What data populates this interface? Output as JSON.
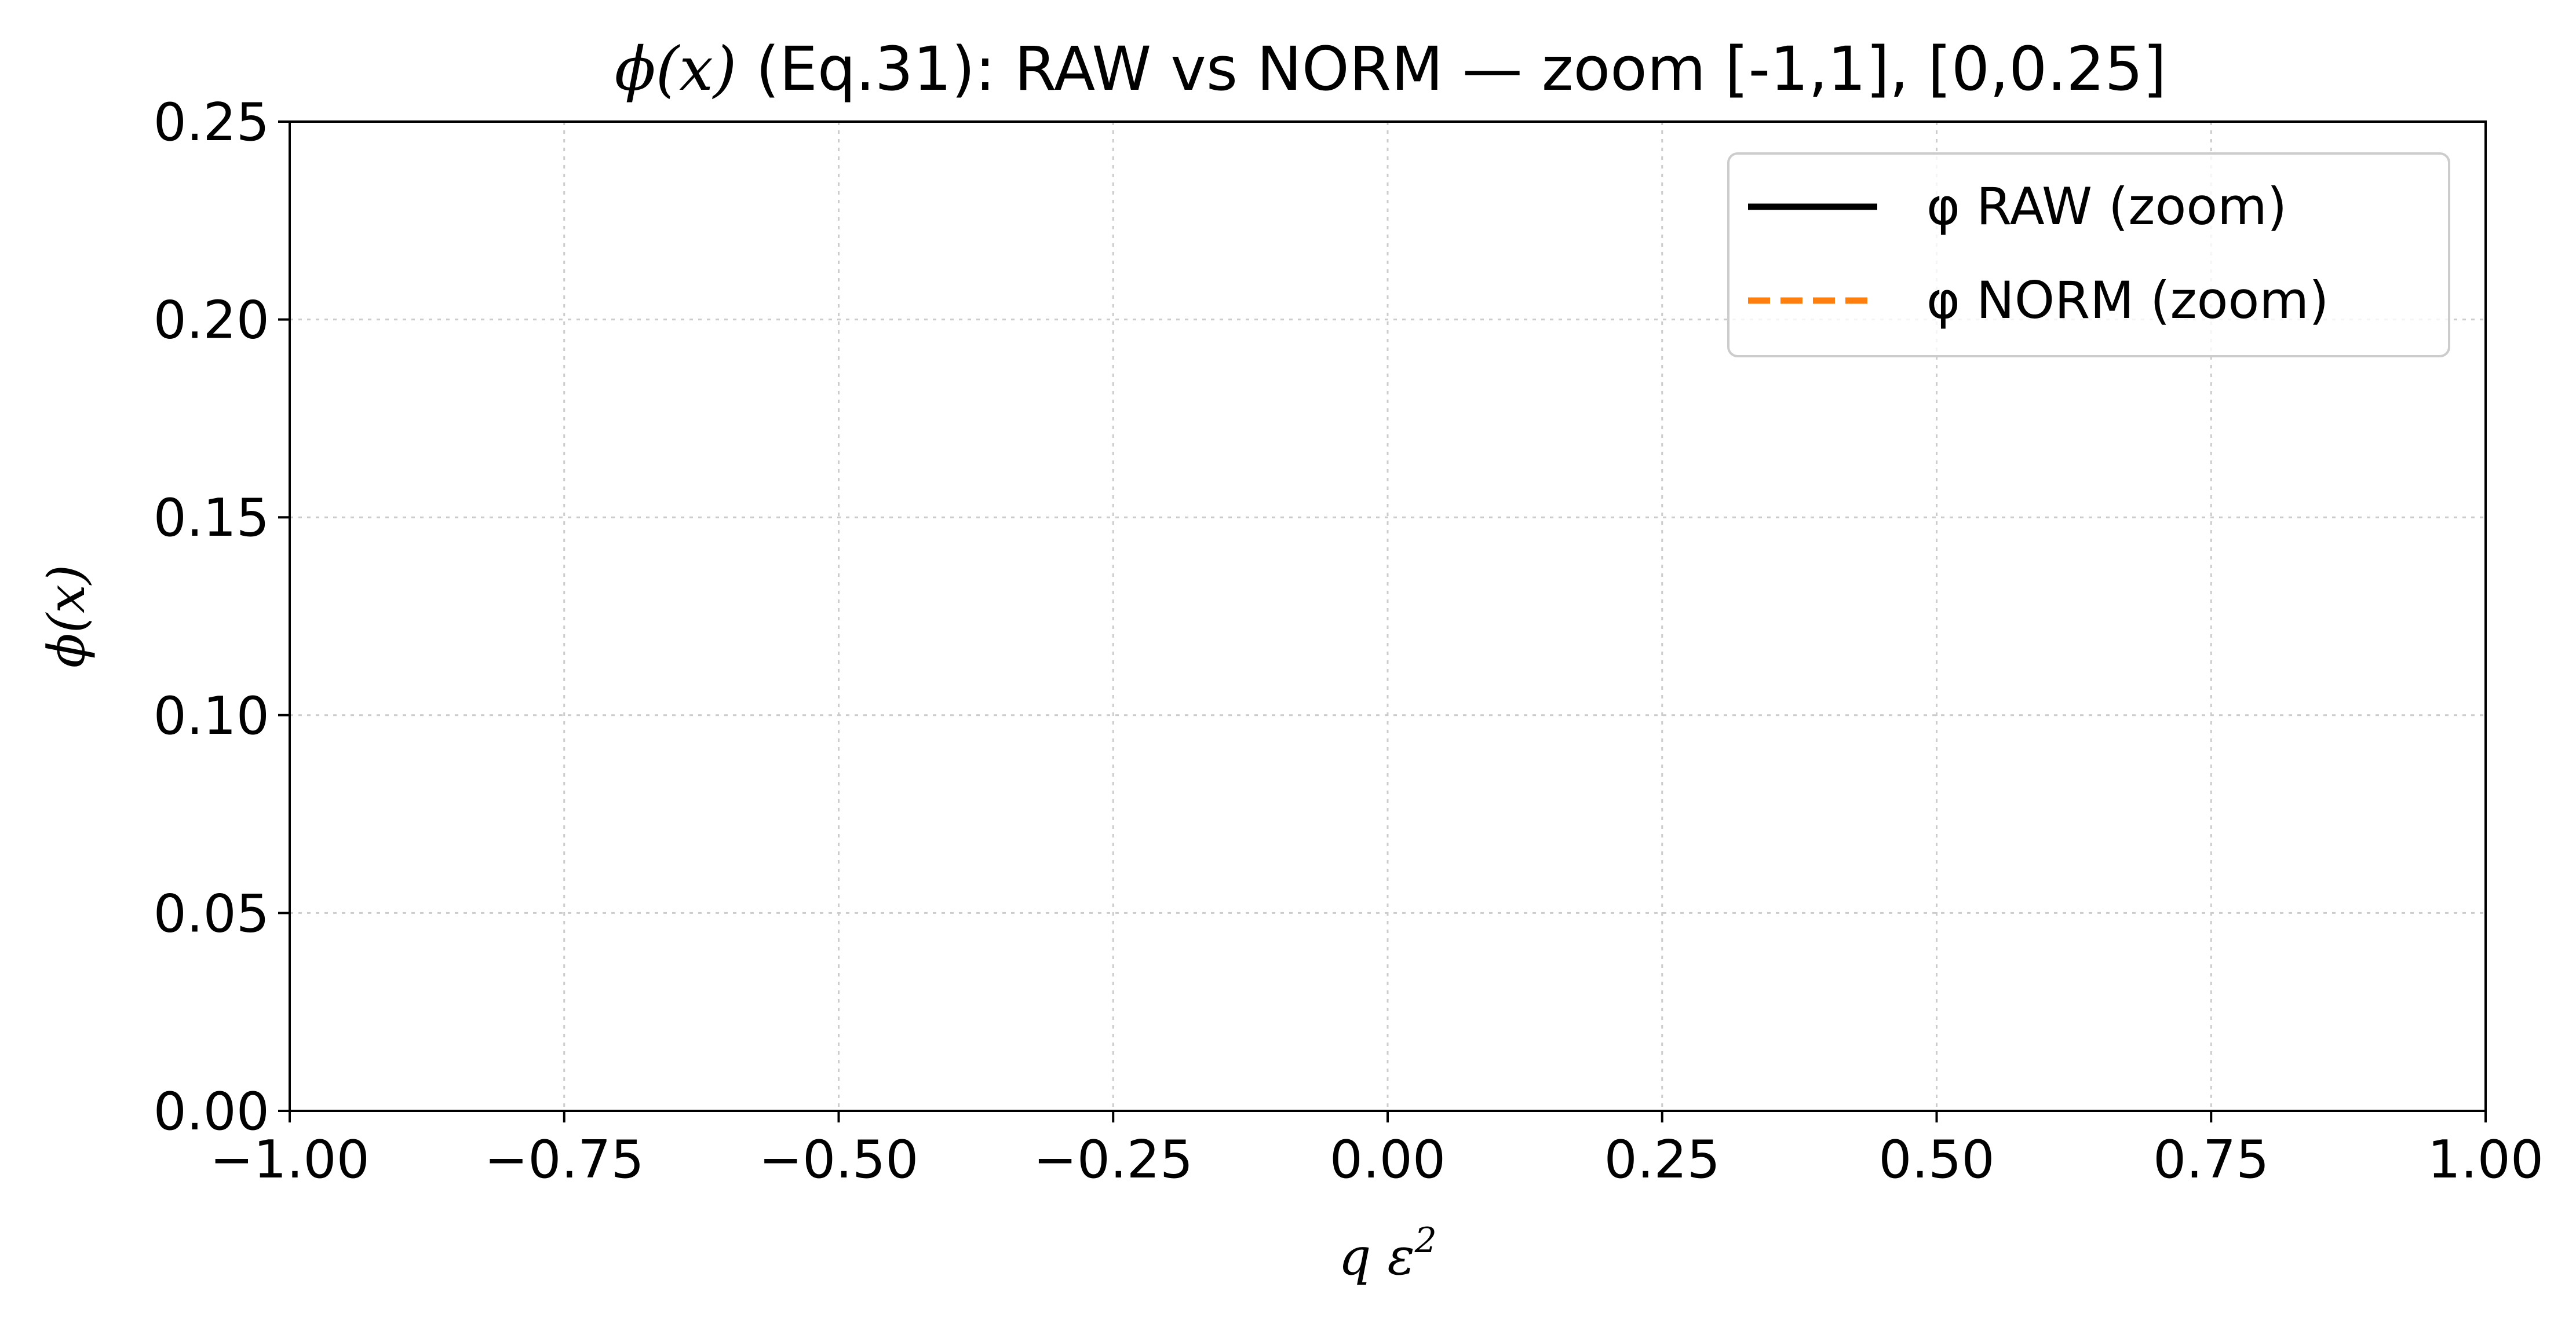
{
  "chart_data": {
    "type": "line",
    "title": {
      "symbol": "ϕ(x)",
      "text": " (Eq.31): RAW vs NORM — zoom [-1,1], [0,0.25]"
    },
    "xlabel": {
      "main": "q ε",
      "sup": "2"
    },
    "ylabel": "ϕ(x)",
    "xlim": [
      -1.0,
      1.0
    ],
    "ylim": [
      0.0,
      0.25
    ],
    "x_ticks": [
      -1.0,
      -0.75,
      -0.5,
      -0.25,
      0.0,
      0.25,
      0.5,
      0.75,
      1.0
    ],
    "x_tick_labels": [
      "−1.00",
      "−0.75",
      "−0.50",
      "−0.25",
      "0.00",
      "0.25",
      "0.50",
      "0.75",
      "1.00"
    ],
    "y_ticks": [
      0.0,
      0.05,
      0.1,
      0.15,
      0.2,
      0.25
    ],
    "y_tick_labels": [
      "0.00",
      "0.05",
      "0.10",
      "0.15",
      "0.20",
      "0.25"
    ],
    "grid": true,
    "legend_position": "top-right",
    "series": [
      {
        "name": "φ RAW (zoom)",
        "color": "#000000",
        "style": "solid",
        "x": [],
        "y": []
      },
      {
        "name": "φ NORM (zoom)",
        "color": "#ff7f0e",
        "style": "dashed",
        "x": [],
        "y": []
      }
    ]
  }
}
